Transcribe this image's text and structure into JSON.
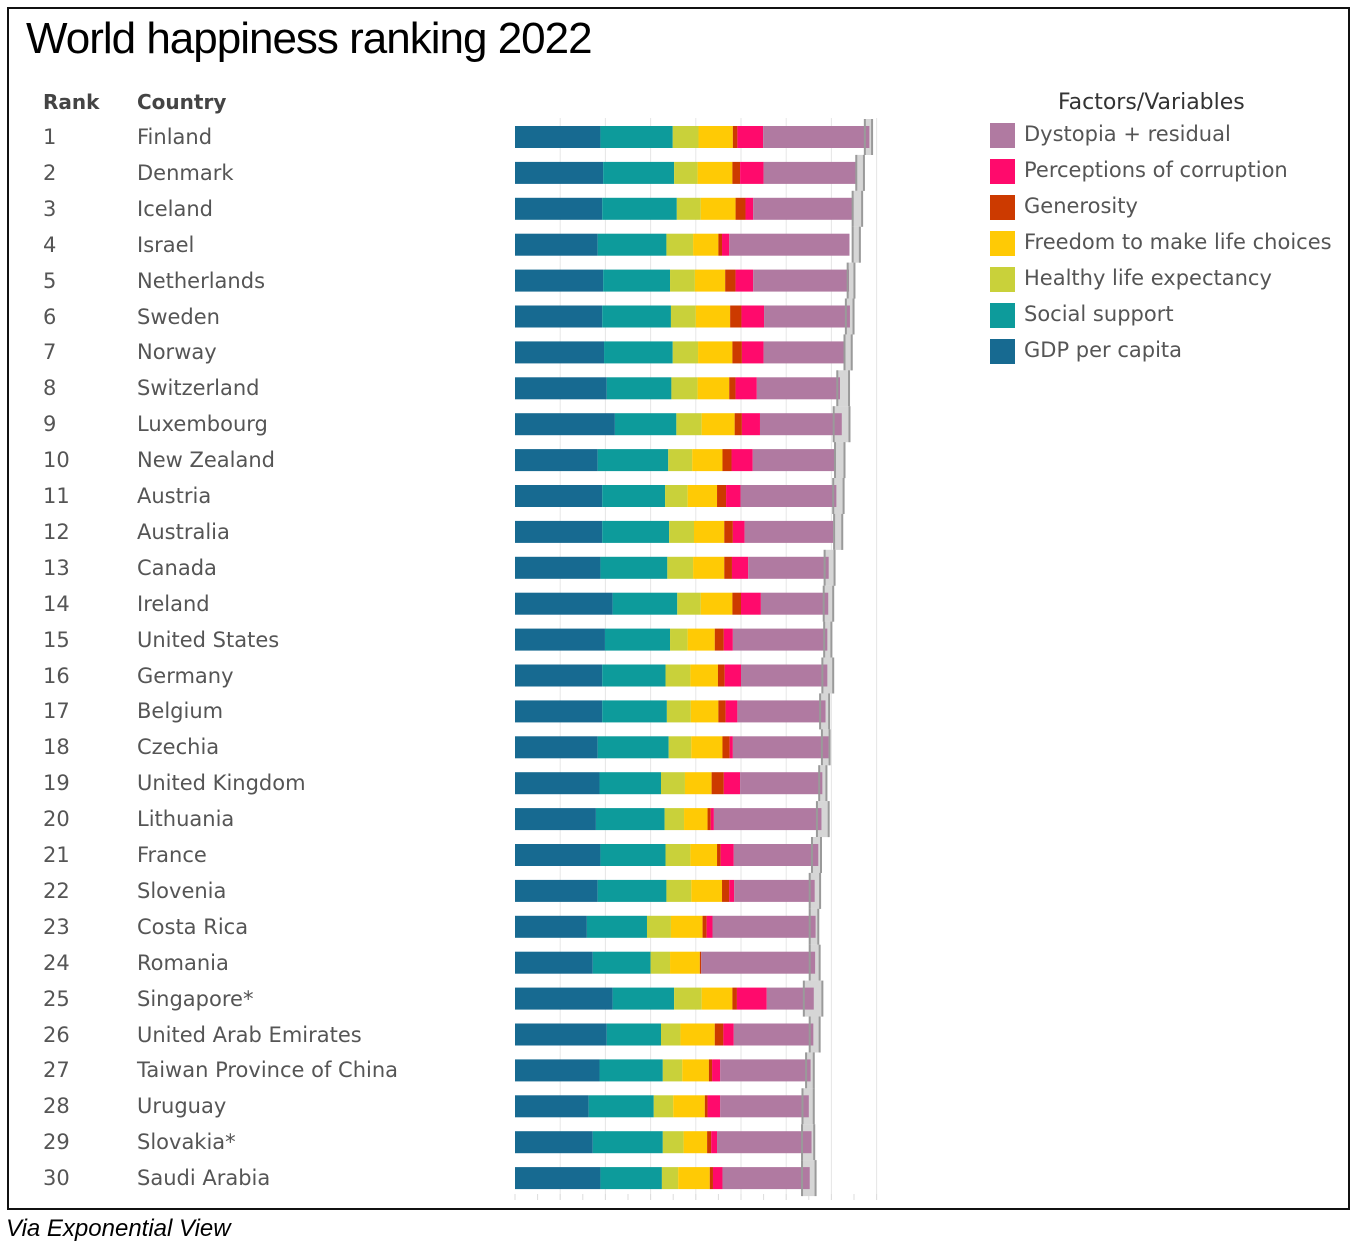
{
  "chart_data": {
    "type": "bar",
    "stacked": true,
    "orientation": "horizontal",
    "title": "World happiness ranking 2022",
    "source": "Via Exponential View",
    "columns": {
      "rank": "Rank",
      "country": "Country"
    },
    "legend_title": "Factors/Variables",
    "legend_order": [
      "Dystopia + residual",
      "Perceptions of corruption",
      "Generosity",
      "Freedom to make life choices",
      "Healthy life expectancy",
      "Social support",
      "GDP per capita"
    ],
    "factors": [
      "GDP per capita",
      "Social support",
      "Healthy life expectancy",
      "Freedom to make life choices",
      "Generosity",
      "Perceptions of corruption",
      "Dystopia + residual"
    ],
    "colors": {
      "GDP per capita": "#176a91",
      "Social support": "#0d9b9b",
      "Healthy life expectancy": "#c9d13a",
      "Freedom to make life choices": "#ffca05",
      "Generosity": "#cc3a00",
      "Perceptions of corruption": "#ff0a6c",
      "Dystopia + residual": "#b07aa1",
      "whisker": "#9a9a9a"
    },
    "xlim": [
      0,
      8
    ],
    "grid": true,
    "rows": [
      {
        "rank": "1",
        "country": "Finland",
        "values": [
          1.89,
          1.6,
          0.57,
          0.76,
          0.1,
          0.57,
          2.35
        ],
        "ci": [
          7.74,
          7.9
        ]
      },
      {
        "rank": "2",
        "country": "Denmark",
        "values": [
          1.95,
          1.57,
          0.52,
          0.77,
          0.17,
          0.52,
          2.06
        ],
        "ci": [
          7.55,
          7.72
        ]
      },
      {
        "rank": "3",
        "country": "Iceland",
        "values": [
          1.93,
          1.65,
          0.53,
          0.77,
          0.22,
          0.17,
          2.22
        ],
        "ci": [
          7.47,
          7.68
        ]
      },
      {
        "rank": "4",
        "country": "Israel",
        "values": [
          1.83,
          1.52,
          0.59,
          0.56,
          0.08,
          0.16,
          2.66
        ],
        "ci": [
          7.47,
          7.63
        ]
      },
      {
        "rank": "5",
        "country": "Netherlands",
        "values": [
          1.95,
          1.48,
          0.55,
          0.67,
          0.23,
          0.39,
          2.12
        ],
        "ci": [
          7.36,
          7.51
        ]
      },
      {
        "rank": "6",
        "country": "Sweden",
        "values": [
          1.93,
          1.52,
          0.55,
          0.76,
          0.25,
          0.5,
          1.9
        ],
        "ci": [
          7.32,
          7.49
        ]
      },
      {
        "rank": "7",
        "country": "Norway",
        "values": [
          1.97,
          1.52,
          0.56,
          0.76,
          0.21,
          0.48,
          1.8
        ],
        "ci": [
          7.29,
          7.45
        ]
      },
      {
        "rank": "8",
        "country": "Switzerland",
        "values": [
          2.03,
          1.43,
          0.58,
          0.7,
          0.14,
          0.47,
          1.84
        ],
        "ci": [
          7.13,
          7.39
        ]
      },
      {
        "rank": "9",
        "country": "Luxembourg",
        "values": [
          2.21,
          1.36,
          0.56,
          0.73,
          0.16,
          0.4,
          1.81
        ],
        "ci": [
          7.05,
          7.4
        ]
      },
      {
        "rank": "10",
        "country": "New Zealand",
        "values": [
          1.83,
          1.56,
          0.53,
          0.67,
          0.2,
          0.47,
          1.84
        ],
        "ci": [
          7.08,
          7.29
        ]
      },
      {
        "rank": "11",
        "country": "Austria",
        "values": [
          1.93,
          1.39,
          0.5,
          0.65,
          0.2,
          0.32,
          2.12
        ],
        "ci": [
          7.04,
          7.27
        ]
      },
      {
        "rank": "12",
        "country": "Australia",
        "values": [
          1.93,
          1.48,
          0.55,
          0.67,
          0.19,
          0.26,
          1.96
        ],
        "ci": [
          7.06,
          7.24
        ]
      },
      {
        "rank": "13",
        "country": "Canada",
        "values": [
          1.89,
          1.48,
          0.57,
          0.69,
          0.17,
          0.36,
          1.78
        ],
        "ci": [
          6.85,
          7.07
        ]
      },
      {
        "rank": "14",
        "country": "Ireland",
        "values": [
          2.16,
          1.43,
          0.52,
          0.7,
          0.19,
          0.44,
          1.49
        ],
        "ci": [
          6.83,
          7.04
        ]
      },
      {
        "rank": "15",
        "country": "United States",
        "values": [
          1.99,
          1.44,
          0.39,
          0.6,
          0.2,
          0.2,
          2.09
        ],
        "ci": [
          6.84,
          7.0
        ]
      },
      {
        "rank": "16",
        "country": "Germany",
        "values": [
          1.93,
          1.4,
          0.55,
          0.61,
          0.15,
          0.36,
          1.91
        ],
        "ci": [
          6.8,
          7.04
        ]
      },
      {
        "rank": "17",
        "country": "Belgium",
        "values": [
          1.93,
          1.43,
          0.53,
          0.61,
          0.16,
          0.26,
          1.95
        ],
        "ci": [
          6.75,
          6.95
        ]
      },
      {
        "rank": "18",
        "country": "Czechia",
        "values": [
          1.83,
          1.57,
          0.5,
          0.69,
          0.16,
          0.07,
          2.12
        ],
        "ci": [
          6.79,
          6.96
        ]
      },
      {
        "rank": "19",
        "country": "United Kingdom",
        "values": [
          1.87,
          1.36,
          0.53,
          0.59,
          0.27,
          0.36,
          1.82
        ],
        "ci": [
          6.73,
          6.89
        ]
      },
      {
        "rank": "20",
        "country": "Lithuania",
        "values": [
          1.79,
          1.52,
          0.43,
          0.52,
          0.07,
          0.07,
          2.38
        ],
        "ci": [
          6.68,
          6.94
        ]
      },
      {
        "rank": "21",
        "country": "France",
        "values": [
          1.89,
          1.44,
          0.55,
          0.59,
          0.08,
          0.29,
          1.87
        ],
        "ci": [
          6.57,
          6.77
        ]
      },
      {
        "rank": "22",
        "country": "Slovenia",
        "values": [
          1.83,
          1.52,
          0.55,
          0.68,
          0.16,
          0.11,
          1.78
        ],
        "ci": [
          6.52,
          6.75
        ]
      },
      {
        "rank": "23",
        "country": "Costa Rica",
        "values": [
          1.59,
          1.33,
          0.53,
          0.7,
          0.09,
          0.13,
          2.28
        ],
        "ci": [
          6.52,
          6.71
        ]
      },
      {
        "rank": "24",
        "country": "Romania",
        "values": [
          1.72,
          1.28,
          0.43,
          0.66,
          0.03,
          0.0,
          2.52
        ],
        "ci": [
          6.52,
          6.74
        ]
      },
      {
        "rank": "25",
        "country": "Singapore*",
        "values": [
          2.16,
          1.36,
          0.61,
          0.68,
          0.1,
          0.66,
          1.04
        ],
        "ci": [
          6.39,
          6.8
        ]
      },
      {
        "rank": "26",
        "country": "United Arab Emirates",
        "values": [
          2.03,
          1.2,
          0.43,
          0.76,
          0.19,
          0.23,
          1.76
        ],
        "ci": [
          6.52,
          6.74
        ]
      },
      {
        "rank": "27",
        "country": "Taiwan Province of China",
        "values": [
          1.87,
          1.4,
          0.43,
          0.59,
          0.07,
          0.18,
          2.0
        ],
        "ci": [
          6.44,
          6.61
        ]
      },
      {
        "rank": "28",
        "country": "Uruguay",
        "values": [
          1.63,
          1.44,
          0.43,
          0.7,
          0.06,
          0.28,
          1.96
        ],
        "ci": [
          6.36,
          6.61
        ]
      },
      {
        "rank": "29",
        "country": "Slovakia*",
        "values": [
          1.72,
          1.55,
          0.46,
          0.52,
          0.09,
          0.13,
          2.09
        ],
        "ci": [
          6.35,
          6.62
        ]
      },
      {
        "rank": "30",
        "country": "Saudi Arabia",
        "values": [
          1.89,
          1.36,
          0.36,
          0.7,
          0.07,
          0.21,
          1.93
        ],
        "ci": [
          6.35,
          6.65
        ]
      }
    ]
  }
}
